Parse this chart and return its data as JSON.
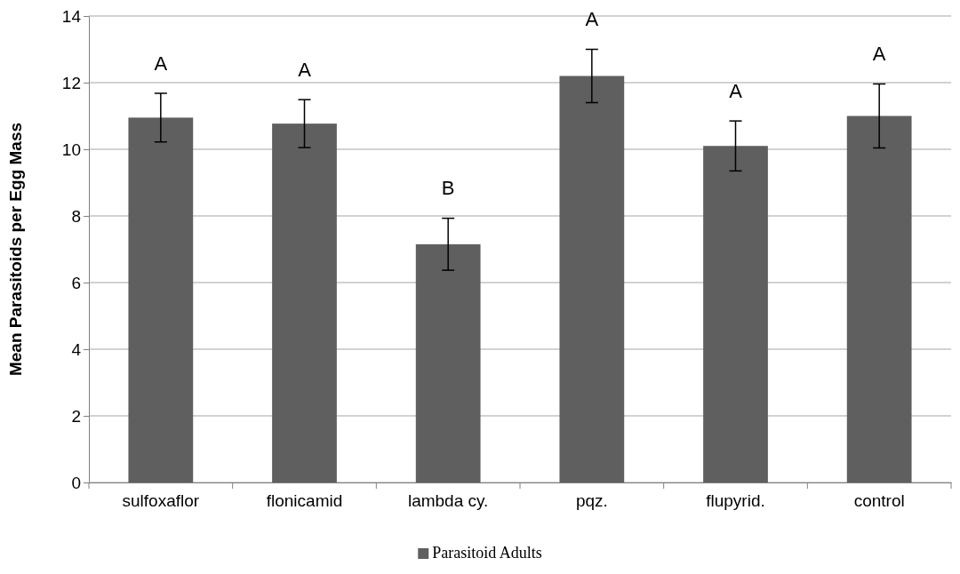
{
  "chart_data": {
    "type": "bar",
    "ylabel": "Mean Parasitoids per Egg Mass",
    "categories": [
      "sulfoxaflor",
      "flonicamid",
      "lambda cy.",
      "pqz.",
      "flupyrid.",
      "control"
    ],
    "series": [
      {
        "name": "Parasitoid Adults",
        "color": "#5f5f5f",
        "values": [
          10.95,
          10.77,
          7.15,
          12.2,
          10.1,
          11.0
        ],
        "errors": [
          0.73,
          0.72,
          0.78,
          0.8,
          0.75,
          0.96
        ]
      }
    ],
    "ylim": [
      0,
      14
    ],
    "yticks": [
      0,
      2,
      4,
      6,
      8,
      10,
      12,
      14
    ],
    "grid": "y",
    "legend": "bottom",
    "annotations": [
      "A",
      "A",
      "B",
      "A",
      "A",
      "A"
    ]
  }
}
